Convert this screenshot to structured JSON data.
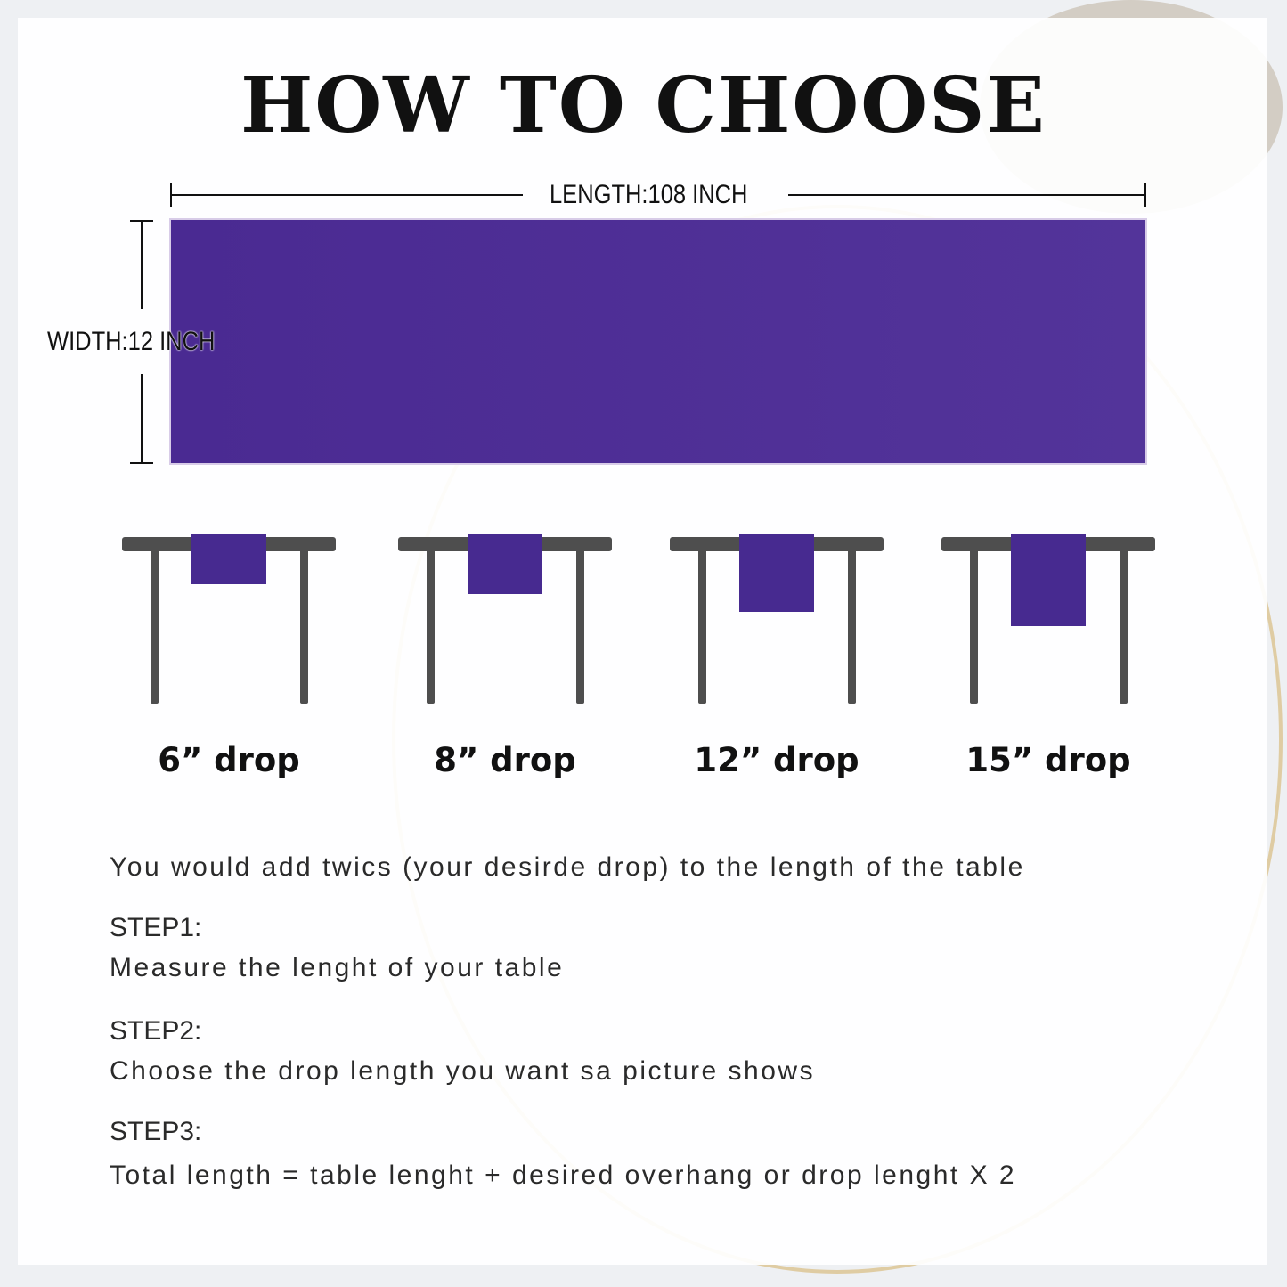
{
  "title": "HOW TO CHOOSE",
  "dimensions": {
    "length_label": "LENGTH:108 INCH",
    "width_label": "WIDTH:12 INCH"
  },
  "colors": {
    "runner": "#4a2a92",
    "table": "#4e4e4e",
    "text": "#111111"
  },
  "drops": [
    {
      "label": "6”  drop",
      "inches": 6
    },
    {
      "label": "8”  drop",
      "inches": 8
    },
    {
      "label": "12”  drop",
      "inches": 12
    },
    {
      "label": "15”  drop",
      "inches": 15
    }
  ],
  "instructions": {
    "intro": "You would add twics (your desirde drop) to the length of the table",
    "steps": [
      {
        "heading": "STEP1:",
        "text": "Measure the lenght of your table"
      },
      {
        "heading": "STEP2:",
        "text": "Choose the drop length you want sa picture shows"
      },
      {
        "heading": "STEP3:",
        "text": "Total length = table lenght + desired overhang or drop lenght X 2"
      }
    ]
  }
}
